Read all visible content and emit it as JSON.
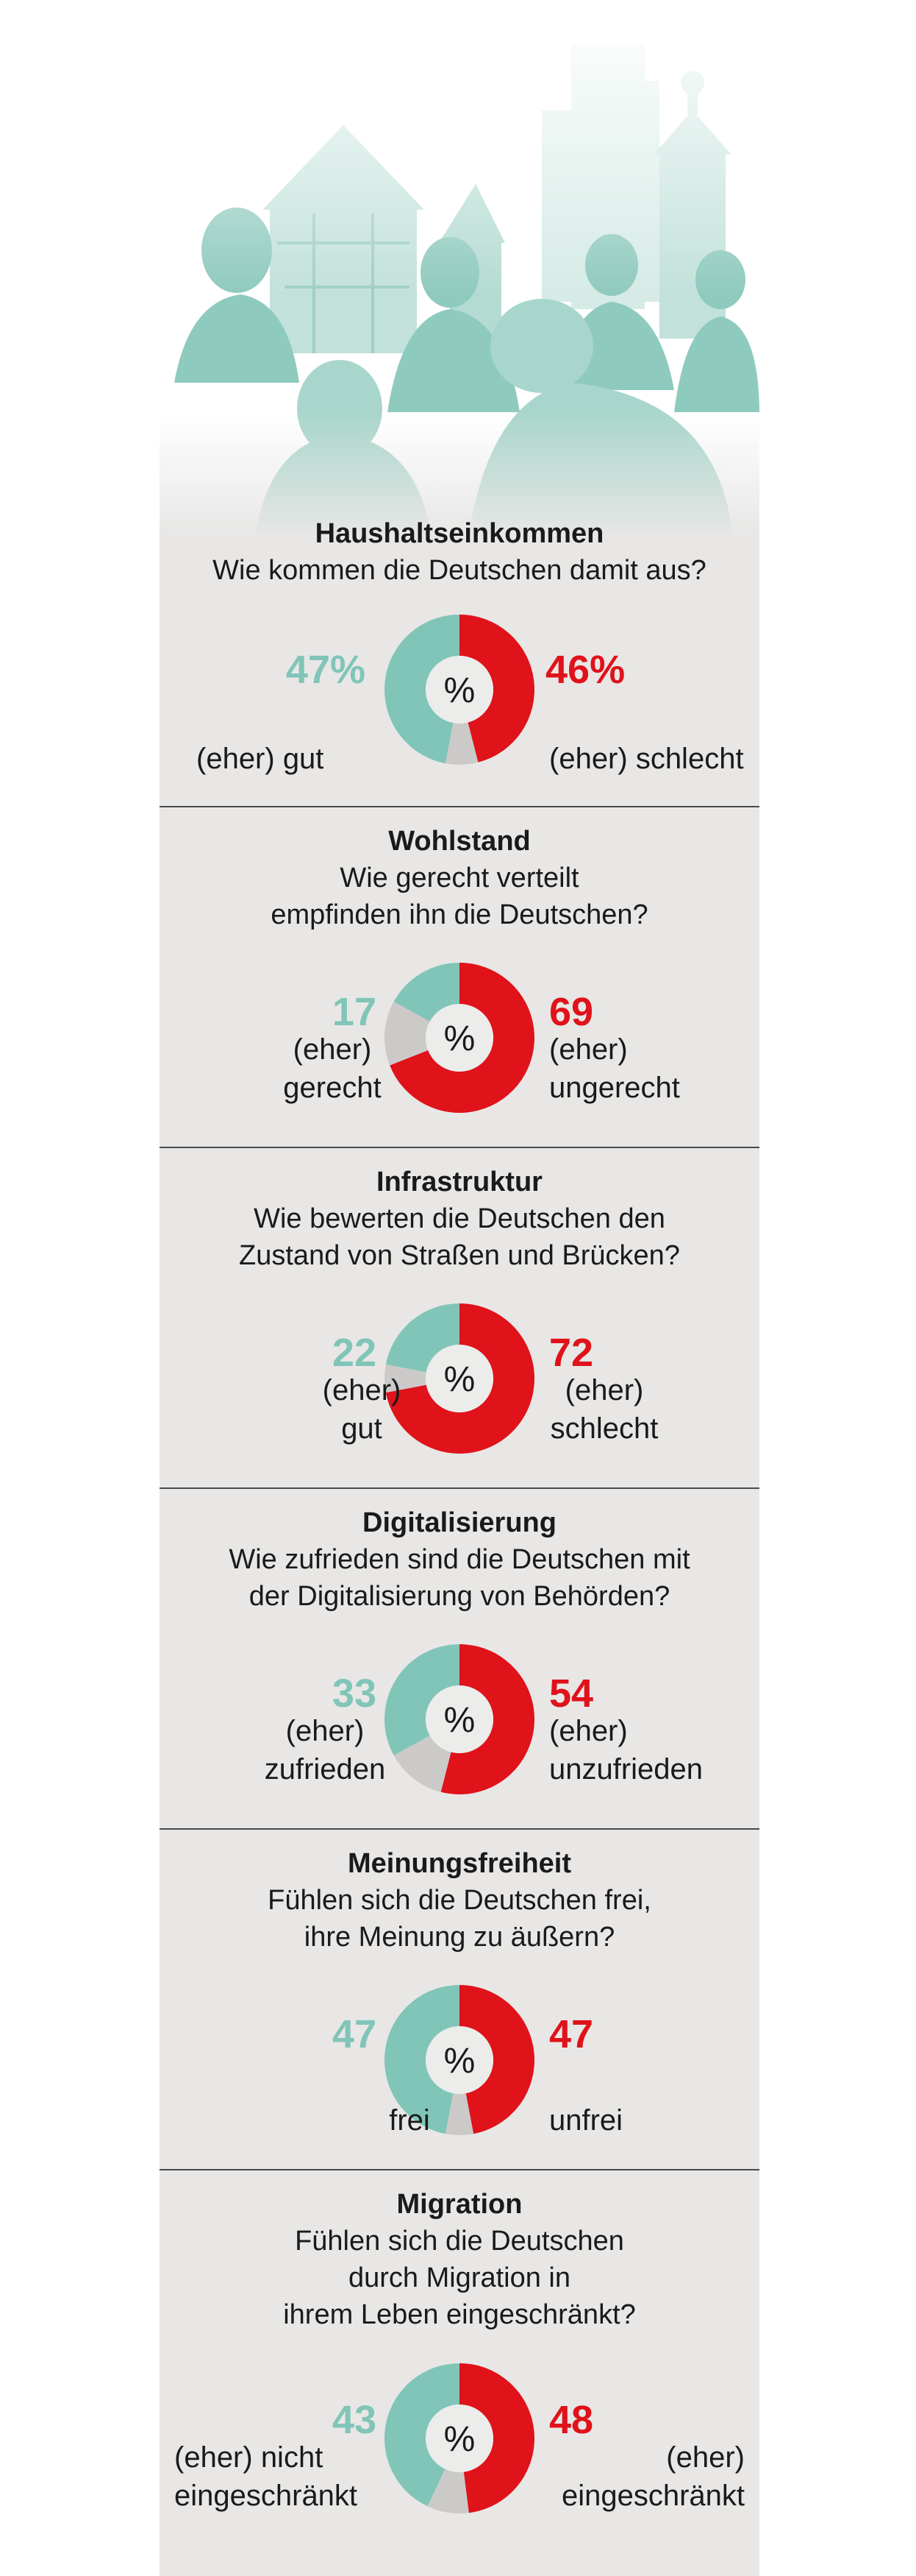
{
  "chart_data": [
    {
      "type": "pie",
      "id": "haushaltseinkommen",
      "title": "Haushaltseinkommen",
      "question": [
        "Wie kommen die Deutschen damit aus?"
      ],
      "positive": {
        "value": 47,
        "display": "47%",
        "label": [
          "(eher) gut"
        ]
      },
      "negative": {
        "value": 46,
        "display": "46%",
        "label": [
          "(eher) schlecht"
        ]
      },
      "rest": 7,
      "center": "%"
    },
    {
      "type": "pie",
      "id": "wohlstand",
      "title": "Wohlstand",
      "question": [
        "Wie gerecht verteilt",
        "empfinden ihn die Deutschen?"
      ],
      "positive": {
        "value": 17,
        "display": "17",
        "label": [
          "(eher)",
          "gerecht"
        ]
      },
      "negative": {
        "value": 69,
        "display": "69",
        "label": [
          "(eher)",
          "ungerecht"
        ]
      },
      "rest": 14,
      "center": "%"
    },
    {
      "type": "pie",
      "id": "infrastruktur",
      "title": "Infrastruktur",
      "question": [
        "Wie bewerten die Deutschen den",
        "Zustand von Straßen und Brücken?"
      ],
      "positive": {
        "value": 22,
        "display": "22",
        "label": [
          "(eher)",
          "gut"
        ]
      },
      "negative": {
        "value": 72,
        "display": "72",
        "label": [
          "(eher)",
          "schlecht"
        ]
      },
      "rest": 6,
      "center": "%"
    },
    {
      "type": "pie",
      "id": "digitalisierung",
      "title": "Digitalisierung",
      "question": [
        "Wie zufrieden sind die Deutschen mit",
        "der Digitalisierung von Behörden?"
      ],
      "positive": {
        "value": 33,
        "display": "33",
        "label": [
          "(eher)",
          "zufrieden"
        ]
      },
      "negative": {
        "value": 54,
        "display": "54",
        "label": [
          "(eher)",
          "unzufrieden"
        ]
      },
      "rest": 13,
      "center": "%"
    },
    {
      "type": "pie",
      "id": "meinungsfreiheit",
      "title": "Meinungsfreiheit",
      "question": [
        "Fühlen sich die Deutschen frei,",
        "ihre Meinung zu äußern?"
      ],
      "positive": {
        "value": 47,
        "display": "47",
        "label": [
          "frei"
        ]
      },
      "negative": {
        "value": 47,
        "display": "47",
        "label": [
          "unfrei"
        ]
      },
      "rest": 6,
      "center": "%"
    },
    {
      "type": "pie",
      "id": "migration",
      "title": "Migration",
      "question": [
        "Fühlen sich die Deutschen",
        "durch Migration in",
        "ihrem Leben eingeschränkt?"
      ],
      "positive": {
        "value": 43,
        "display": "43",
        "label": [
          "(eher) nicht",
          "eingeschränkt"
        ]
      },
      "negative": {
        "value": 48,
        "display": "48",
        "label": [
          "(eher)",
          "eingeschränkt"
        ]
      },
      "rest": 9,
      "center": "%"
    }
  ],
  "colors": {
    "positive": "#80c5b8",
    "negative": "#e0121a",
    "rest": "#cbcac9",
    "hole": "#ececeb"
  },
  "hero": {
    "icon": "crowd-in-old-town-illustration"
  }
}
